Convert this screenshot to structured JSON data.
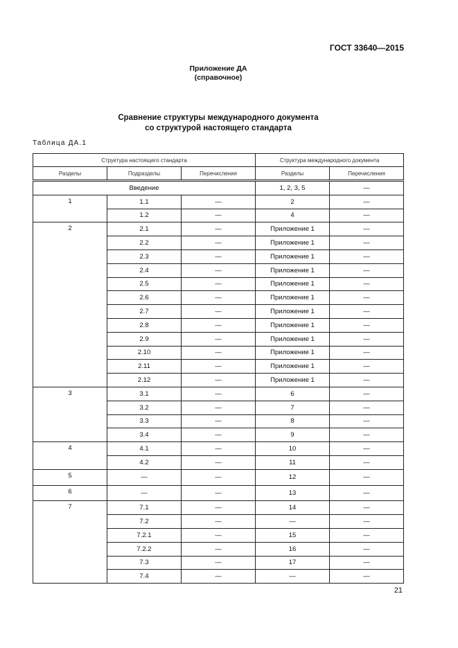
{
  "header": {
    "standard": "ГОСТ 33640—2015"
  },
  "appendix": {
    "title": "Приложение ДА",
    "subtitle": "(справочное)"
  },
  "heading": {
    "line1": "Сравнение структуры международного документа",
    "line2": "со структурой настоящего стандарта"
  },
  "table_label": "Таблица ДА.1",
  "table": {
    "group_headers": [
      "Структура настоящего стандарта",
      "Структура международного документа"
    ],
    "column_headers": [
      "Разделы",
      "Подразделы",
      "Перечисления",
      "Разделы",
      "Перечисления"
    ],
    "intro_row": {
      "label": "Введение",
      "intl_sections": "1, 2, 3, 5",
      "intl_enum": "—"
    },
    "sections": [
      {
        "section": "1",
        "rows": [
          [
            "1.1",
            "—",
            "2",
            "—"
          ],
          [
            "1.2",
            "—",
            "4",
            "—"
          ]
        ]
      },
      {
        "section": "2",
        "rows": [
          [
            "2.1",
            "—",
            "Приложение 1",
            "—"
          ],
          [
            "2.2",
            "—",
            "Приложение 1",
            "—"
          ],
          [
            "2.3",
            "—",
            "Приложение 1",
            "—"
          ],
          [
            "2.4",
            "—",
            "Приложение 1",
            "—"
          ],
          [
            "2.5",
            "—",
            "Приложение 1",
            "—"
          ],
          [
            "2.6",
            "—",
            "Приложение 1",
            "—"
          ],
          [
            "2.7",
            "—",
            "Приложение 1",
            "—"
          ],
          [
            "2.8",
            "—",
            "Приложение 1",
            "—"
          ],
          [
            "2.9",
            "—",
            "Приложение 1",
            "—"
          ],
          [
            "2.10",
            "—",
            "Приложение 1",
            "—"
          ],
          [
            "2.11",
            "—",
            "Приложение 1",
            "—"
          ],
          [
            "2.12",
            "—",
            "Приложение 1",
            "—"
          ]
        ]
      },
      {
        "section": "3",
        "rows": [
          [
            "3.1",
            "—",
            "6",
            "—"
          ],
          [
            "3.2",
            "—",
            "7",
            "—"
          ],
          [
            "3.3",
            "—",
            "8",
            "—"
          ],
          [
            "3.4",
            "—",
            "9",
            "—"
          ]
        ]
      },
      {
        "section": "4",
        "rows": [
          [
            "4.1",
            "—",
            "10",
            "—"
          ],
          [
            "4.2",
            "—",
            "11",
            "—"
          ]
        ]
      },
      {
        "section": "5",
        "rows": [
          [
            "—",
            "—",
            "12",
            "—"
          ]
        ]
      },
      {
        "section": "6",
        "rows": [
          [
            "—",
            "—",
            "13",
            "—"
          ]
        ]
      },
      {
        "section": "7",
        "rows": [
          [
            "7.1",
            "—",
            "14",
            "—"
          ],
          [
            "7.2",
            "—",
            "—",
            "—"
          ],
          [
            "7.2.1",
            "—",
            "15",
            "—"
          ],
          [
            "7.2.2",
            "—",
            "16",
            "—"
          ],
          [
            "7.3",
            "—",
            "17",
            "—"
          ],
          [
            "7.4",
            "—",
            "—",
            "—"
          ]
        ]
      }
    ]
  },
  "page_number": "21"
}
